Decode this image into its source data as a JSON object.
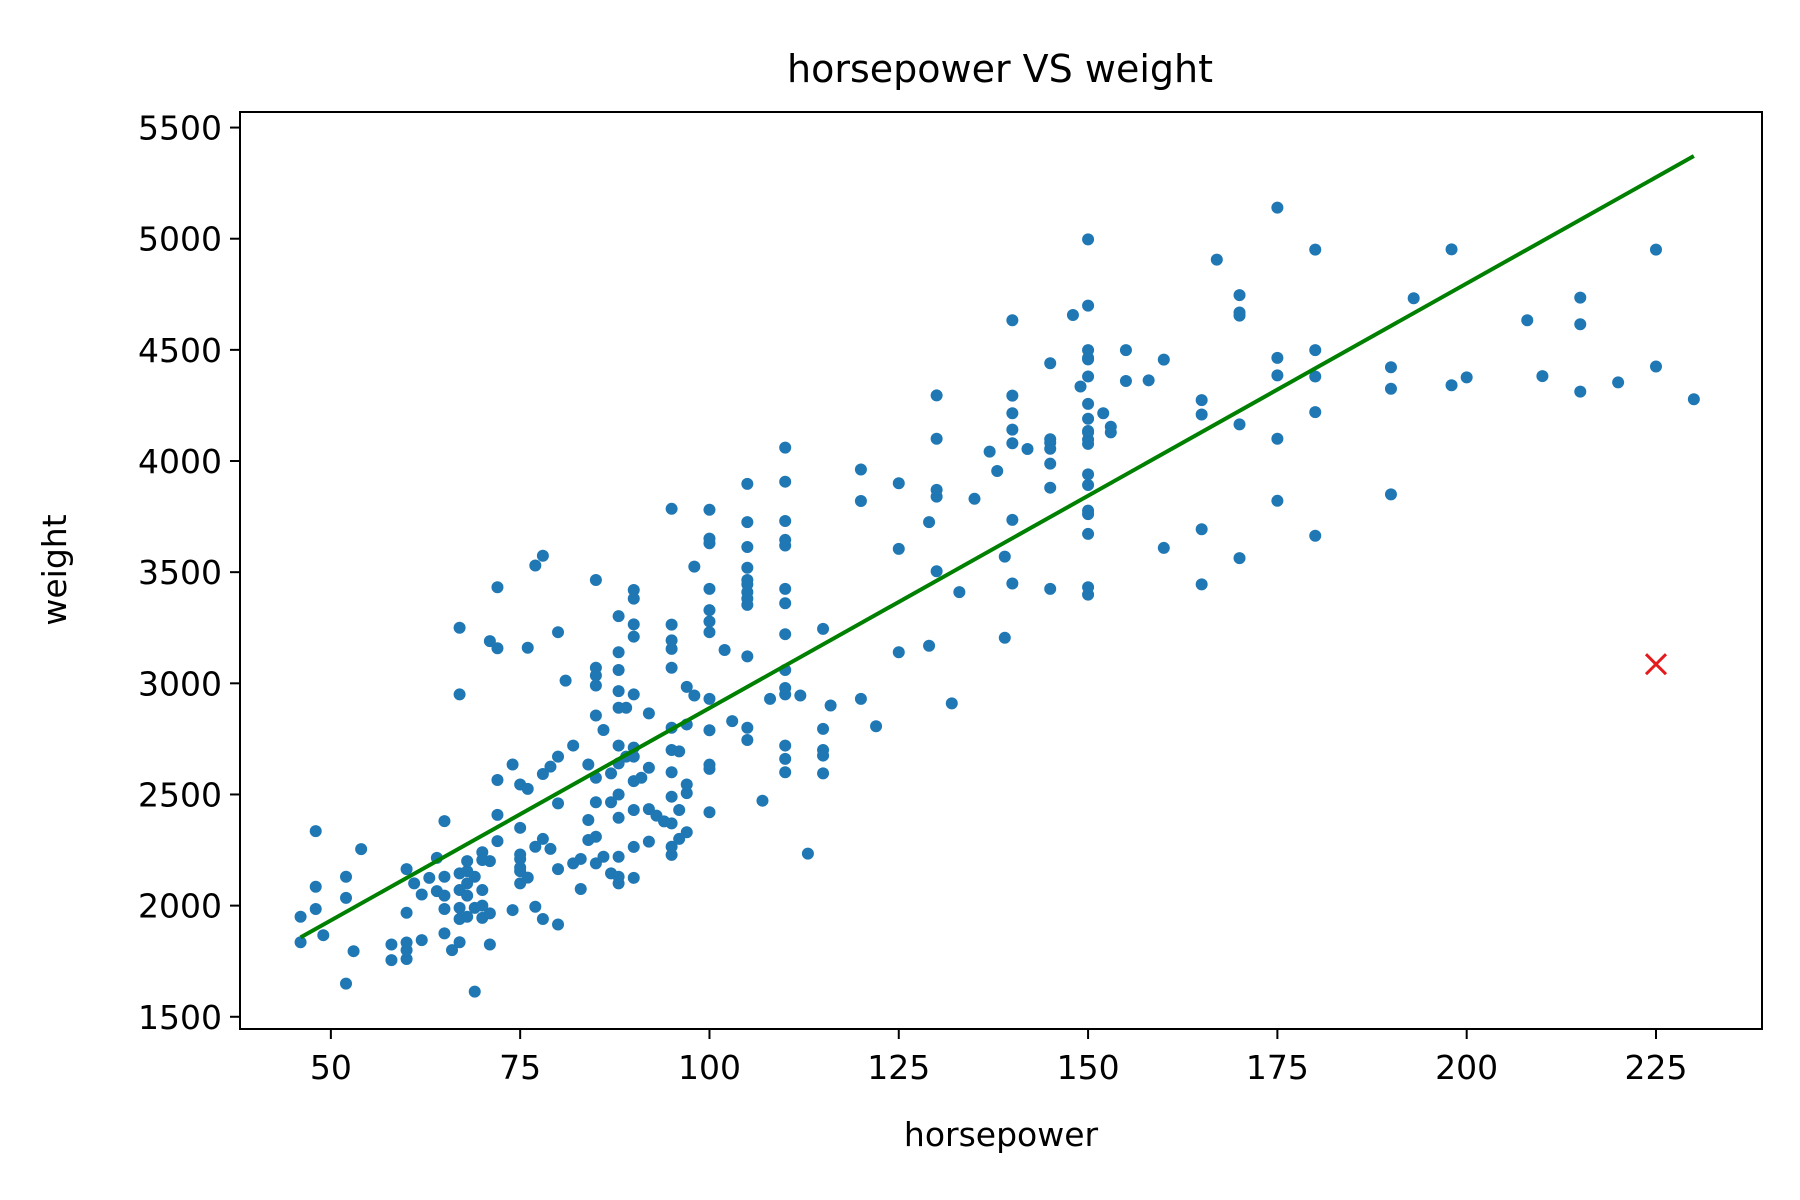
{
  "chart_data": {
    "type": "scatter",
    "title": "horsepower VS weight",
    "xlabel": "horsepower",
    "ylabel": "weight",
    "xlim": [
      38,
      239
    ],
    "ylim": [
      1445,
      5570
    ],
    "x_ticks": [
      50,
      75,
      100,
      125,
      150,
      175,
      200,
      225
    ],
    "y_ticks": [
      1500,
      2000,
      2500,
      3000,
      3500,
      4000,
      4500,
      5000,
      5500
    ],
    "grid": false,
    "colors": {
      "points": "#1f77b4",
      "fit_line": "#008000",
      "highlight": "#e41a1c"
    },
    "series": [
      {
        "type": "scatter",
        "points": [
          [
            46,
            1835
          ],
          [
            46,
            1950
          ],
          [
            48,
            2085
          ],
          [
            48,
            2335
          ],
          [
            48,
            1985
          ],
          [
            49,
            1867
          ],
          [
            52,
            1649
          ],
          [
            52,
            2130
          ],
          [
            52,
            2035
          ],
          [
            53,
            1795
          ],
          [
            54,
            2254
          ],
          [
            58,
            1755
          ],
          [
            58,
            1825
          ],
          [
            60,
            1760
          ],
          [
            60,
            1800
          ],
          [
            60,
            1834
          ],
          [
            60,
            1968
          ],
          [
            60,
            2164
          ],
          [
            61,
            2100
          ],
          [
            62,
            1845
          ],
          [
            62,
            2050
          ],
          [
            63,
            2125
          ],
          [
            64,
            2065
          ],
          [
            64,
            2215
          ],
          [
            65,
            1875
          ],
          [
            65,
            2045
          ],
          [
            65,
            1985
          ],
          [
            65,
            2130
          ],
          [
            65,
            2380
          ],
          [
            66,
            1800
          ],
          [
            67,
            1835
          ],
          [
            67,
            1940
          ],
          [
            67,
            1990
          ],
          [
            67,
            2070
          ],
          [
            67,
            2145
          ],
          [
            67,
            2950
          ],
          [
            67,
            3250
          ],
          [
            68,
            1950
          ],
          [
            68,
            2045
          ],
          [
            68,
            2100
          ],
          [
            68,
            2155
          ],
          [
            68,
            2200
          ],
          [
            69,
            1613
          ],
          [
            69,
            1990
          ],
          [
            69,
            2130
          ],
          [
            70,
            1945
          ],
          [
            70,
            2000
          ],
          [
            70,
            2070
          ],
          [
            70,
            2205
          ],
          [
            70,
            2240
          ],
          [
            71,
            1825
          ],
          [
            71,
            1965
          ],
          [
            71,
            2200
          ],
          [
            71,
            3190
          ],
          [
            72,
            2290
          ],
          [
            72,
            2408
          ],
          [
            72,
            2565
          ],
          [
            72,
            3158
          ],
          [
            72,
            3432
          ],
          [
            74,
            1980
          ],
          [
            74,
            2635
          ],
          [
            75,
            2155
          ],
          [
            75,
            2171
          ],
          [
            75,
            2210
          ],
          [
            75,
            2230
          ],
          [
            75,
            2350
          ],
          [
            75,
            2545
          ],
          [
            75,
            2100
          ],
          [
            76,
            2126
          ],
          [
            76,
            2525
          ],
          [
            76,
            3160
          ],
          [
            77,
            1995
          ],
          [
            77,
            2265
          ],
          [
            77,
            3530
          ],
          [
            78,
            1940
          ],
          [
            78,
            2300
          ],
          [
            78,
            2592
          ],
          [
            78,
            3574
          ],
          [
            79,
            2255
          ],
          [
            79,
            2625
          ],
          [
            80,
            1915
          ],
          [
            80,
            2164
          ],
          [
            80,
            2460
          ],
          [
            80,
            2670
          ],
          [
            80,
            3230
          ],
          [
            81,
            3012
          ],
          [
            82,
            2190
          ],
          [
            82,
            2720
          ],
          [
            83,
            2075
          ],
          [
            83,
            2210
          ],
          [
            84,
            2295
          ],
          [
            84,
            2385
          ],
          [
            84,
            2635
          ],
          [
            85,
            2190
          ],
          [
            85,
            2310
          ],
          [
            85,
            2465
          ],
          [
            85,
            2575
          ],
          [
            85,
            2855
          ],
          [
            85,
            2990
          ],
          [
            85,
            3035
          ],
          [
            85,
            3070
          ],
          [
            85,
            3465
          ],
          [
            86,
            2220
          ],
          [
            86,
            2790
          ],
          [
            87,
            2145
          ],
          [
            87,
            2465
          ],
          [
            87,
            2595
          ],
          [
            88,
            2100
          ],
          [
            88,
            2130
          ],
          [
            88,
            2220
          ],
          [
            88,
            2395
          ],
          [
            88,
            2500
          ],
          [
            88,
            2640
          ],
          [
            88,
            2720
          ],
          [
            88,
            2890
          ],
          [
            88,
            2965
          ],
          [
            88,
            3060
          ],
          [
            88,
            3140
          ],
          [
            88,
            3302
          ],
          [
            89,
            2670
          ],
          [
            89,
            2890
          ],
          [
            90,
            2125
          ],
          [
            90,
            2264
          ],
          [
            90,
            2430
          ],
          [
            90,
            2560
          ],
          [
            90,
            2670
          ],
          [
            90,
            2711
          ],
          [
            90,
            2950
          ],
          [
            90,
            3210
          ],
          [
            90,
            3265
          ],
          [
            90,
            3381
          ],
          [
            90,
            3420
          ],
          [
            91,
            2575
          ],
          [
            92,
            2288
          ],
          [
            92,
            2434
          ],
          [
            92,
            2620
          ],
          [
            92,
            2865
          ],
          [
            93,
            2405
          ],
          [
            94,
            2379
          ],
          [
            95,
            2228
          ],
          [
            95,
            2265
          ],
          [
            95,
            2370
          ],
          [
            95,
            2490
          ],
          [
            95,
            2600
          ],
          [
            95,
            2700
          ],
          [
            95,
            2800
          ],
          [
            95,
            3070
          ],
          [
            95,
            3155
          ],
          [
            95,
            3193
          ],
          [
            95,
            3264
          ],
          [
            95,
            3785
          ],
          [
            96,
            2300
          ],
          [
            96,
            2430
          ],
          [
            96,
            2694
          ],
          [
            97,
            2330
          ],
          [
            97,
            2506
          ],
          [
            97,
            2545
          ],
          [
            97,
            2815
          ],
          [
            97,
            2984
          ],
          [
            98,
            2945
          ],
          [
            98,
            3525
          ],
          [
            100,
            2420
          ],
          [
            100,
            2615
          ],
          [
            100,
            2634
          ],
          [
            100,
            2789
          ],
          [
            100,
            2930
          ],
          [
            100,
            3230
          ],
          [
            100,
            3278
          ],
          [
            100,
            3329
          ],
          [
            100,
            3425
          ],
          [
            100,
            3630
          ],
          [
            100,
            3651
          ],
          [
            100,
            3781
          ],
          [
            102,
            3150
          ],
          [
            103,
            2830
          ],
          [
            105,
            2745
          ],
          [
            105,
            2800
          ],
          [
            105,
            3121
          ],
          [
            105,
            3353
          ],
          [
            105,
            3381
          ],
          [
            105,
            3410
          ],
          [
            105,
            3445
          ],
          [
            105,
            3465
          ],
          [
            105,
            3520
          ],
          [
            105,
            3613
          ],
          [
            105,
            3725
          ],
          [
            105,
            3897
          ],
          [
            107,
            2472
          ],
          [
            108,
            2930
          ],
          [
            110,
            2600
          ],
          [
            110,
            2660
          ],
          [
            110,
            2720
          ],
          [
            110,
            2950
          ],
          [
            110,
            2979
          ],
          [
            110,
            3060
          ],
          [
            110,
            3221
          ],
          [
            110,
            3360
          ],
          [
            110,
            3425
          ],
          [
            110,
            3620
          ],
          [
            110,
            3645
          ],
          [
            110,
            3730
          ],
          [
            110,
            3907
          ],
          [
            110,
            4060
          ],
          [
            112,
            2945
          ],
          [
            113,
            2234
          ],
          [
            115,
            2595
          ],
          [
            115,
            2675
          ],
          [
            115,
            2700
          ],
          [
            115,
            2795
          ],
          [
            115,
            3245
          ],
          [
            116,
            2900
          ],
          [
            120,
            2930
          ],
          [
            120,
            3820
          ],
          [
            120,
            3962
          ],
          [
            122,
            2807
          ],
          [
            125,
            3140
          ],
          [
            125,
            3605
          ],
          [
            125,
            3900
          ],
          [
            129,
            3169
          ],
          [
            129,
            3725
          ],
          [
            130,
            3504
          ],
          [
            130,
            3840
          ],
          [
            130,
            3870
          ],
          [
            130,
            4100
          ],
          [
            130,
            4295
          ],
          [
            132,
            2910
          ],
          [
            133,
            3410
          ],
          [
            135,
            3830
          ],
          [
            137,
            4042
          ],
          [
            138,
            3955
          ],
          [
            139,
            3205
          ],
          [
            139,
            3570
          ],
          [
            140,
            3449
          ],
          [
            140,
            3735
          ],
          [
            140,
            4080
          ],
          [
            140,
            4141
          ],
          [
            140,
            4215
          ],
          [
            140,
            4294
          ],
          [
            140,
            4633
          ],
          [
            142,
            4054
          ],
          [
            145,
            3425
          ],
          [
            145,
            3880
          ],
          [
            145,
            3988
          ],
          [
            145,
            4055
          ],
          [
            145,
            4082
          ],
          [
            145,
            4098
          ],
          [
            145,
            4440
          ],
          [
            148,
            4657
          ],
          [
            149,
            4335
          ],
          [
            150,
            3399
          ],
          [
            150,
            3432
          ],
          [
            150,
            3672
          ],
          [
            150,
            3761
          ],
          [
            150,
            3777
          ],
          [
            150,
            3892
          ],
          [
            150,
            3940
          ],
          [
            150,
            4077
          ],
          [
            150,
            4096
          ],
          [
            150,
            4129
          ],
          [
            150,
            4135
          ],
          [
            150,
            4190
          ],
          [
            150,
            4257
          ],
          [
            150,
            4380
          ],
          [
            150,
            4457
          ],
          [
            150,
            4464
          ],
          [
            150,
            4499
          ],
          [
            150,
            4699
          ],
          [
            150,
            4997
          ],
          [
            152,
            4215
          ],
          [
            153,
            4129
          ],
          [
            153,
            4154
          ],
          [
            155,
            4360
          ],
          [
            155,
            4499
          ],
          [
            158,
            4363
          ],
          [
            160,
            3609
          ],
          [
            160,
            4456
          ],
          [
            165,
            3445
          ],
          [
            165,
            3693
          ],
          [
            165,
            4209
          ],
          [
            165,
            4274
          ],
          [
            167,
            4906
          ],
          [
            170,
            3563
          ],
          [
            170,
            4165
          ],
          [
            170,
            4654
          ],
          [
            170,
            4668
          ],
          [
            170,
            4746
          ],
          [
            175,
            3821
          ],
          [
            175,
            4100
          ],
          [
            175,
            4385
          ],
          [
            175,
            4464
          ],
          [
            175,
            5140
          ],
          [
            180,
            3664
          ],
          [
            180,
            4220
          ],
          [
            180,
            4380
          ],
          [
            180,
            4499
          ],
          [
            180,
            4951
          ],
          [
            190,
            3850
          ],
          [
            190,
            4325
          ],
          [
            190,
            4422
          ],
          [
            193,
            4732
          ],
          [
            198,
            4341
          ],
          [
            198,
            4952
          ],
          [
            200,
            4376
          ],
          [
            208,
            4633
          ],
          [
            210,
            4382
          ],
          [
            215,
            4312
          ],
          [
            215,
            4615
          ],
          [
            215,
            4735
          ],
          [
            220,
            4354
          ],
          [
            225,
            4425
          ],
          [
            225,
            4951
          ],
          [
            230,
            4278
          ]
        ]
      },
      {
        "type": "line",
        "points": [
          [
            46,
            1857
          ],
          [
            230,
            5372
          ]
        ]
      },
      {
        "type": "marker",
        "marker": "x",
        "points": [
          [
            225,
            3086
          ]
        ]
      }
    ]
  }
}
